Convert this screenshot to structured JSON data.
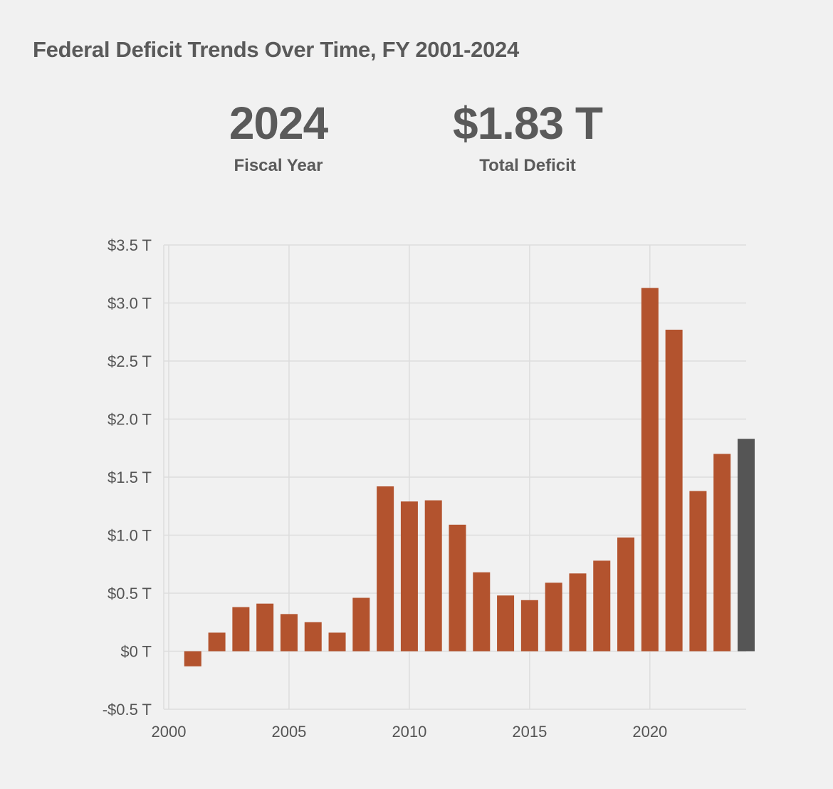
{
  "title": "Federal Deficit Trends Over Time, FY 2001-2024",
  "kpis": {
    "year": {
      "value": "2024",
      "label": "Fiscal Year"
    },
    "deficit": {
      "value": "$1.83 T",
      "label": "Total Deficit"
    }
  },
  "colors": {
    "bar": "#b3532e",
    "highlight": "#555555",
    "grid": "#dddddd",
    "text": "#5a5a5a"
  },
  "chart_data": {
    "type": "bar",
    "title": "Federal Deficit Trends Over Time, FY 2001-2024",
    "xlabel": "",
    "ylabel": "",
    "x": [
      2001,
      2002,
      2003,
      2004,
      2005,
      2006,
      2007,
      2008,
      2009,
      2010,
      2011,
      2012,
      2013,
      2014,
      2015,
      2016,
      2017,
      2018,
      2019,
      2020,
      2021,
      2022,
      2023,
      2024
    ],
    "values": [
      -0.13,
      0.16,
      0.38,
      0.41,
      0.32,
      0.25,
      0.16,
      0.46,
      1.42,
      1.29,
      1.3,
      1.09,
      0.68,
      0.48,
      0.44,
      0.59,
      0.67,
      0.78,
      0.98,
      3.13,
      2.77,
      1.38,
      1.7,
      1.83
    ],
    "highlight_x": 2024,
    "xlim": [
      2000,
      2024
    ],
    "ylim": [
      -0.5,
      3.5
    ],
    "x_ticks": [
      2000,
      2005,
      2010,
      2015,
      2020
    ],
    "x_tick_labels": [
      "2000",
      "2005",
      "2010",
      "2015",
      "2020"
    ],
    "y_ticks": [
      -0.5,
      0,
      0.5,
      1.0,
      1.5,
      2.0,
      2.5,
      3.0,
      3.5
    ],
    "y_tick_labels": [
      "-$0.5 T",
      "$0 T",
      "$0.5 T",
      "$1.0 T",
      "$1.5 T",
      "$2.0 T",
      "$2.5 T",
      "$3.0 T",
      "$3.5 T"
    ],
    "grid": true,
    "legend": "none"
  }
}
